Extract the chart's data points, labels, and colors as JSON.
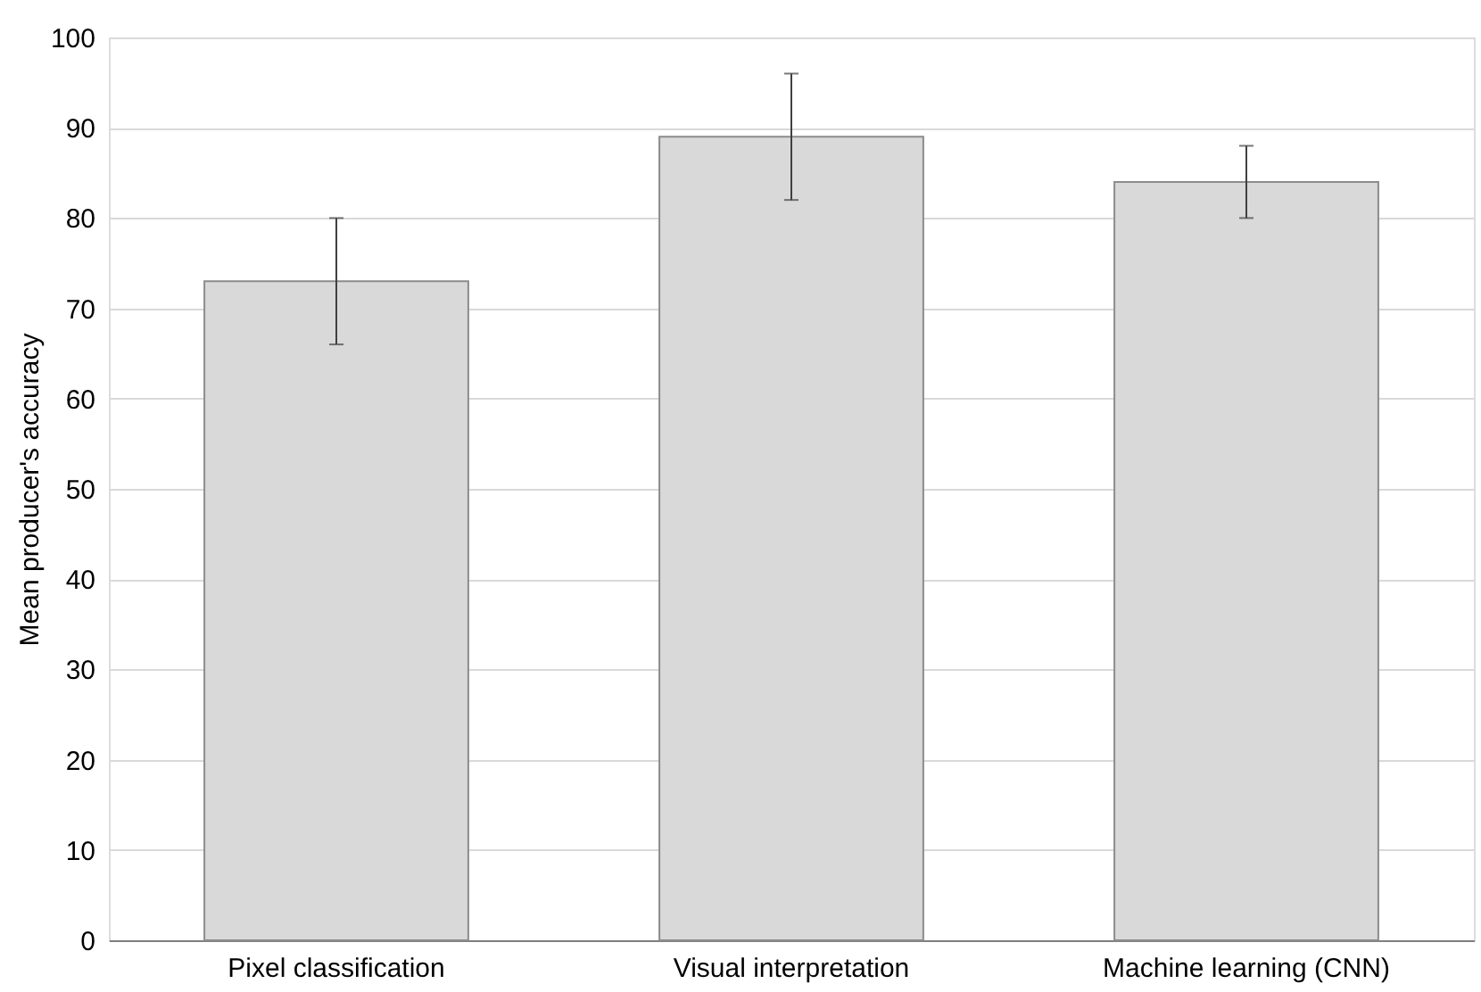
{
  "chart_data": {
    "type": "bar",
    "ylabel": "Mean producer's accuracy",
    "categories": [
      "Pixel classification",
      "Visual interpretation",
      "Machine learning (CNN)"
    ],
    "values": [
      73,
      89,
      84
    ],
    "errors": [
      7,
      7,
      4
    ],
    "color": "#d9d9d9",
    "ylim": [
      0,
      100
    ],
    "yticks": [
      0,
      10,
      20,
      30,
      40,
      50,
      60,
      70,
      80,
      90,
      100
    ],
    "grid": "y"
  }
}
